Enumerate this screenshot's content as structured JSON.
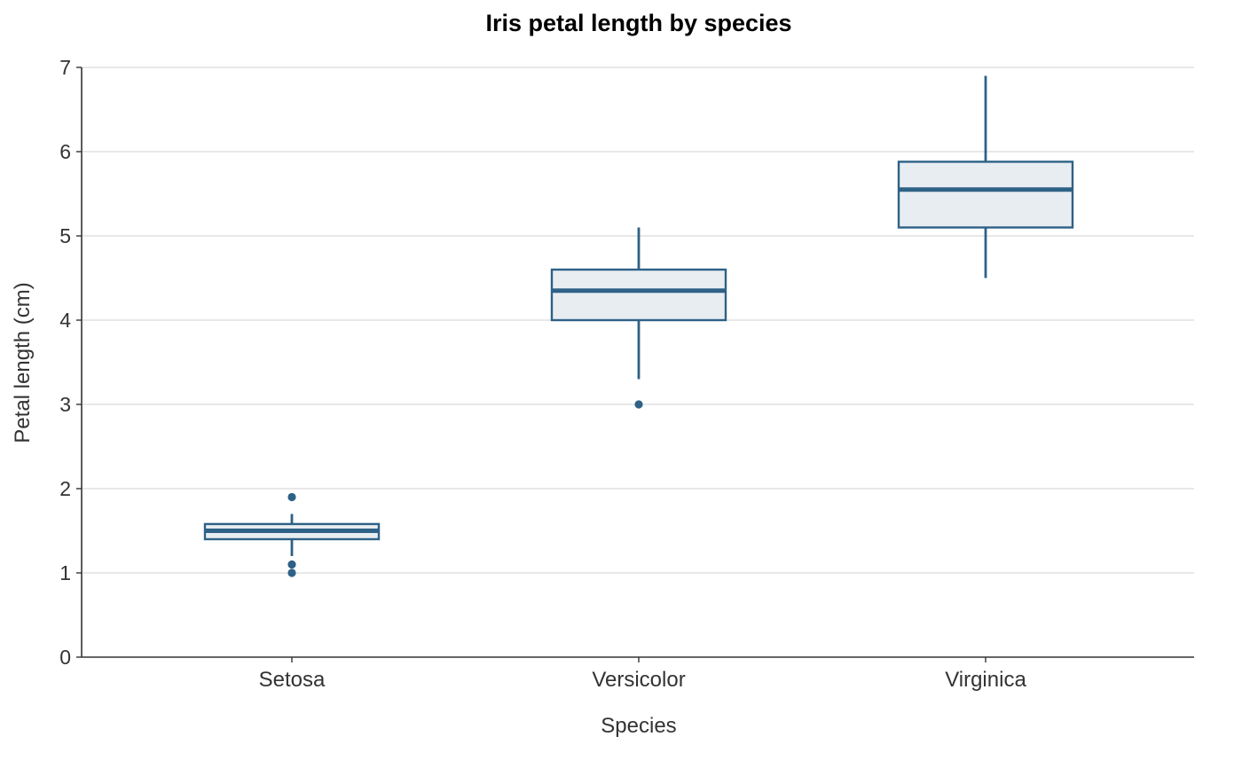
{
  "chart_data": {
    "type": "box",
    "title": "Iris petal length by species",
    "xlabel": "Species",
    "ylabel": "Petal length (cm)",
    "ylim": [
      0,
      7
    ],
    "yticks": [
      "0",
      "1",
      "2",
      "3",
      "4",
      "5",
      "6",
      "7"
    ],
    "grid": true,
    "categories": [
      "Setosa",
      "Versicolor",
      "Virginica"
    ],
    "boxes": [
      {
        "category": "Setosa",
        "whisker_low": 1.2,
        "q1": 1.4,
        "median": 1.5,
        "q3": 1.58,
        "whisker_high": 1.7,
        "outliers": [
          1.0,
          1.1,
          1.9
        ]
      },
      {
        "category": "Versicolor",
        "whisker_low": 3.3,
        "q1": 4.0,
        "median": 4.35,
        "q3": 4.6,
        "whisker_high": 5.1,
        "outliers": [
          3.0
        ]
      },
      {
        "category": "Virginica",
        "whisker_low": 4.5,
        "q1": 5.1,
        "median": 5.55,
        "q3": 5.88,
        "whisker_high": 6.9,
        "outliers": []
      }
    ],
    "colors": {
      "stroke": "#2e6186",
      "fill": "#e8edf2",
      "grid": "#d9d9d9",
      "axis": "#333333"
    }
  }
}
